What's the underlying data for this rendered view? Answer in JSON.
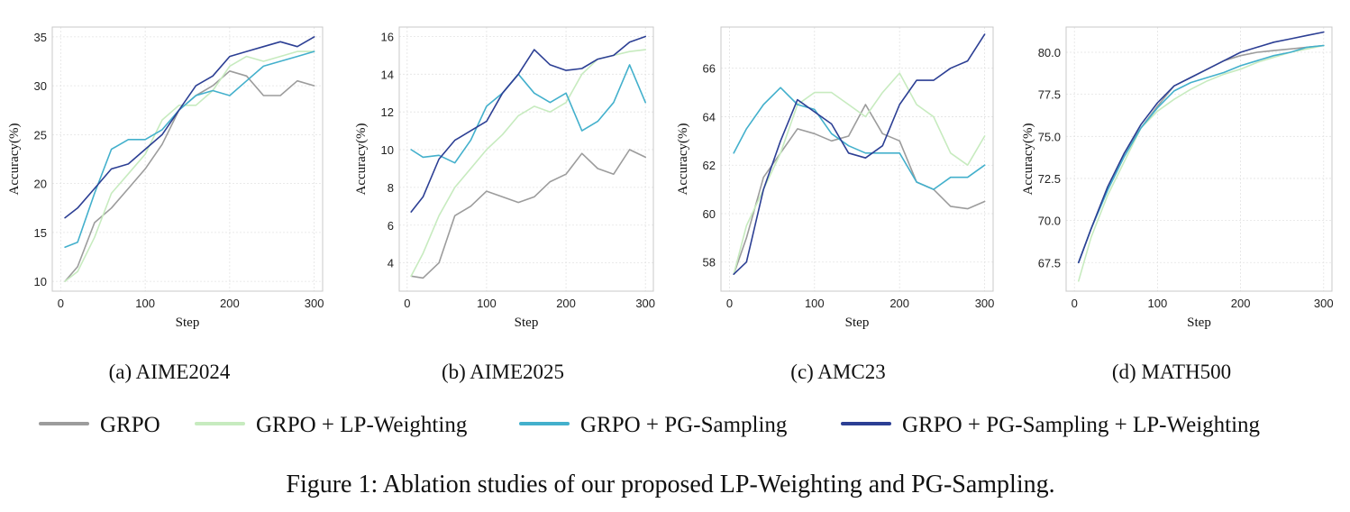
{
  "figure_caption": "Figure 1: Ablation studies of our proposed LP-Weighting and PG-Sampling.",
  "series_styles": [
    {
      "name": "GRPO",
      "color": "#9c9c9c"
    },
    {
      "name": "GRPO + LP-Weighting",
      "color": "#c7ebbf"
    },
    {
      "name": "GRPO + PG-Sampling",
      "color": "#43b0cc"
    },
    {
      "name": "GRPO + PG-Sampling + LP-Weighting",
      "color": "#2c3f94"
    }
  ],
  "chart_data": [
    {
      "type": "line",
      "caption": "(a) AIME2024",
      "xlabel": "Step",
      "ylabel": "Accuracy(%)",
      "xlim": [
        -10,
        310
      ],
      "ylim": [
        9,
        36
      ],
      "xticks": [
        0,
        100,
        200,
        300
      ],
      "yticks": [
        10,
        15,
        20,
        25,
        30,
        35
      ],
      "grid": true,
      "x": [
        5,
        20,
        40,
        60,
        80,
        100,
        120,
        140,
        160,
        180,
        200,
        220,
        240,
        260,
        280,
        300
      ],
      "series": [
        {
          "name": "GRPO",
          "values": [
            10,
            11.5,
            16,
            17.5,
            19.5,
            21.5,
            24,
            27.5,
            29,
            30,
            31.5,
            31,
            29,
            29,
            30.5,
            30
          ]
        },
        {
          "name": "GRPO + LP-Weighting",
          "values": [
            10,
            11,
            14.5,
            19,
            21,
            23,
            26.5,
            28,
            28,
            29.5,
            32,
            33,
            32.5,
            33,
            33.5,
            33.5
          ]
        },
        {
          "name": "GRPO + PG-Sampling",
          "values": [
            13.5,
            14,
            19,
            23.5,
            24.5,
            24.5,
            25.5,
            27.5,
            29,
            29.5,
            29,
            30.5,
            32,
            32.5,
            33,
            33.5
          ]
        },
        {
          "name": "GRPO + PG-Sampling + LP-Weighting",
          "values": [
            16.5,
            17.5,
            19.5,
            21.5,
            22,
            23.5,
            25,
            27.5,
            30,
            31,
            33,
            33.5,
            34,
            34.5,
            34,
            35
          ]
        }
      ]
    },
    {
      "type": "line",
      "caption": "(b) AIME2025",
      "xlabel": "Step",
      "ylabel": "Accuracy(%)",
      "xlim": [
        -10,
        310
      ],
      "ylim": [
        2.5,
        16.5
      ],
      "xticks": [
        0,
        100,
        200,
        300
      ],
      "yticks": [
        4,
        6,
        8,
        10,
        12,
        14,
        16
      ],
      "grid": true,
      "x": [
        5,
        20,
        40,
        60,
        80,
        100,
        120,
        140,
        160,
        180,
        200,
        220,
        240,
        260,
        280,
        300
      ],
      "series": [
        {
          "name": "GRPO",
          "values": [
            3.3,
            3.2,
            4,
            6.5,
            7,
            7.8,
            7.5,
            7.2,
            7.5,
            8.3,
            8.7,
            9.8,
            9,
            8.7,
            10,
            9.6
          ]
        },
        {
          "name": "GRPO + LP-Weighting",
          "values": [
            3.3,
            4.5,
            6.5,
            8,
            9,
            10,
            10.8,
            11.8,
            12.3,
            12,
            12.5,
            14,
            14.8,
            15,
            15.2,
            15.3
          ]
        },
        {
          "name": "GRPO + PG-Sampling",
          "values": [
            10,
            9.6,
            9.7,
            9.3,
            10.5,
            12.3,
            13,
            14,
            13,
            12.5,
            13,
            11,
            11.5,
            12.5,
            14.5,
            12.5
          ]
        },
        {
          "name": "GRPO + PG-Sampling + LP-Weighting",
          "values": [
            6.7,
            7.5,
            9.5,
            10.5,
            11,
            11.5,
            13,
            14,
            15.3,
            14.5,
            14.2,
            14.3,
            14.8,
            15,
            15.7,
            16
          ]
        }
      ]
    },
    {
      "type": "line",
      "caption": "(c) AMC23",
      "xlabel": "Step",
      "ylabel": "Accuracy(%)",
      "xlim": [
        -10,
        310
      ],
      "ylim": [
        56.8,
        67.7
      ],
      "xticks": [
        0,
        100,
        200,
        300
      ],
      "yticks": [
        58,
        60,
        62,
        64,
        66
      ],
      "grid": true,
      "x": [
        5,
        20,
        40,
        60,
        80,
        100,
        120,
        140,
        160,
        180,
        200,
        220,
        240,
        260,
        280,
        300
      ],
      "series": [
        {
          "name": "GRPO",
          "values": [
            57.5,
            59,
            61.5,
            62.5,
            63.5,
            63.3,
            63,
            63.2,
            64.5,
            63.3,
            63,
            61.3,
            61,
            60.3,
            60.2,
            60.5
          ]
        },
        {
          "name": "GRPO + LP-Weighting",
          "values": [
            57.5,
            59.5,
            61,
            62.5,
            64.5,
            65,
            65,
            64.5,
            64,
            65,
            65.8,
            64.5,
            64,
            62.5,
            62,
            63.2
          ]
        },
        {
          "name": "GRPO + PG-Sampling",
          "values": [
            62.5,
            63.5,
            64.5,
            65.2,
            64.5,
            64.3,
            63.3,
            62.8,
            62.5,
            62.5,
            62.5,
            61.3,
            61,
            61.5,
            61.5,
            62
          ]
        },
        {
          "name": "GRPO + PG-Sampling + LP-Weighting",
          "values": [
            57.5,
            58,
            61,
            63,
            64.7,
            64.2,
            63.7,
            62.5,
            62.3,
            62.8,
            64.5,
            65.5,
            65.5,
            66,
            66.3,
            67.4
          ]
        }
      ]
    },
    {
      "type": "line",
      "caption": "(d) MATH500",
      "xlabel": "Step",
      "ylabel": "Accuracy(%)",
      "xlim": [
        -10,
        310
      ],
      "ylim": [
        65.8,
        81.5
      ],
      "xticks": [
        0,
        100,
        200,
        300
      ],
      "yticks": [
        67.5,
        70.0,
        72.5,
        75.0,
        77.5,
        80.0
      ],
      "grid": true,
      "x": [
        5,
        20,
        40,
        60,
        80,
        100,
        120,
        140,
        160,
        180,
        200,
        220,
        240,
        260,
        280,
        300
      ],
      "series": [
        {
          "name": "GRPO",
          "values": [
            67.5,
            69.5,
            72,
            74,
            75.5,
            76.8,
            78,
            78.5,
            79,
            79.5,
            79.8,
            80,
            80.1,
            80.2,
            80.3,
            80.4
          ]
        },
        {
          "name": "GRPO + LP-Weighting",
          "values": [
            66.4,
            69,
            71.5,
            73.5,
            75.5,
            76.5,
            77.2,
            77.8,
            78.3,
            78.7,
            79,
            79.4,
            79.7,
            80,
            80.2,
            80.4
          ]
        },
        {
          "name": "GRPO + PG-Sampling",
          "values": [
            67.5,
            69.5,
            71.8,
            73.8,
            75.5,
            76.7,
            77.7,
            78.2,
            78.5,
            78.8,
            79.2,
            79.5,
            79.8,
            80,
            80.3,
            80.4
          ]
        },
        {
          "name": "GRPO + PG-Sampling + LP-Weighting",
          "values": [
            67.5,
            69.5,
            72,
            74,
            75.7,
            77,
            78,
            78.5,
            79,
            79.5,
            80,
            80.3,
            80.6,
            80.8,
            81,
            81.2
          ]
        }
      ]
    }
  ]
}
